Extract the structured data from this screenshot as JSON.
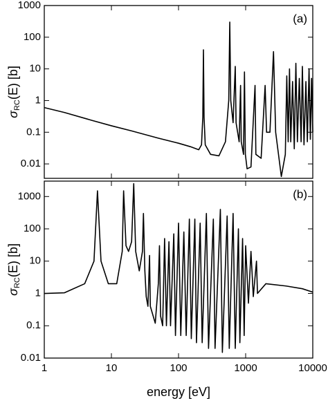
{
  "chart_data": [
    {
      "type": "line",
      "panel_label": "(a)",
      "ylabel": "σ",
      "ylabel_sub": "RC",
      "ylabel_rest": "(E) [b]",
      "xlog": true,
      "ylog": true,
      "xlim": [
        1,
        10000
      ],
      "ylim": [
        0.0035,
        1000
      ],
      "yticks": [
        0.01,
        0.1,
        1,
        10,
        100,
        1000
      ],
      "series": [
        {
          "color": "#000000",
          "x": [
            1,
            2,
            5,
            10,
            20,
            50,
            100,
            150,
            200,
            220,
            230,
            235,
            240,
            250,
            300,
            400,
            500,
            560,
            580,
            600,
            650,
            700,
            720,
            800,
            840,
            860,
            930,
            960,
            990,
            1050,
            1200,
            1380,
            1420,
            1700,
            1950,
            2050,
            2300,
            2600,
            2800,
            3400,
            3900,
            4100,
            4300,
            4500,
            4700,
            5000,
            5300,
            5600,
            5900,
            6300,
            6700,
            7000,
            7400,
            7900,
            8300,
            8800,
            9200,
            9600,
            10000
          ],
          "values": [
            0.6,
            0.42,
            0.24,
            0.16,
            0.11,
            0.065,
            0.045,
            0.035,
            0.028,
            0.04,
            0.3,
            40,
            0.3,
            0.04,
            0.02,
            0.018,
            0.05,
            1,
            300,
            1,
            0.2,
            12,
            0.2,
            0.05,
            3,
            0.05,
            0.02,
            8,
            0.02,
            0.007,
            0.008,
            3,
            0.02,
            0.015,
            3,
            0.1,
            0.1,
            35,
            0.1,
            0.004,
            0.02,
            6,
            0.05,
            10,
            0.05,
            4,
            0.03,
            15,
            0.05,
            5,
            0.05,
            12,
            0.04,
            4,
            0.05,
            10,
            0.06,
            5,
            0.1
          ]
        }
      ]
    },
    {
      "type": "line",
      "panel_label": "(b)",
      "ylabel": "σ",
      "ylabel_sub": "RC",
      "ylabel_rest": "(E) [b]",
      "xlabel": "energy [eV]",
      "xlog": true,
      "ylog": true,
      "xlim": [
        1,
        10000
      ],
      "ylim": [
        0.01,
        3000
      ],
      "xticks": [
        1,
        10,
        100,
        1000,
        10000
      ],
      "yticks": [
        0.01,
        0.1,
        1,
        10,
        100,
        1000
      ],
      "series": [
        {
          "color": "#000000",
          "x": [
            1,
            2,
            4,
            5.5,
            6.2,
            7,
            9,
            12,
            14.5,
            15.2,
            16.5,
            18,
            20,
            21.5,
            23,
            26,
            29,
            30,
            31.5,
            33,
            35,
            37,
            38,
            45,
            50,
            52,
            54,
            58,
            62,
            66,
            72,
            76,
            85,
            90,
            100,
            108,
            120,
            130,
            145,
            155,
            175,
            185,
            210,
            225,
            260,
            280,
            330,
            350,
            420,
            450,
            530,
            570,
            650,
            700,
            780,
            820,
            900,
            950,
            1000,
            1100,
            1200,
            1300,
            1450,
            1500,
            2000,
            4000,
            7000,
            10000
          ],
          "values": [
            1,
            1.05,
            2,
            10,
            1500,
            10,
            2,
            2,
            20,
            1500,
            30,
            20,
            40,
            2500,
            20,
            5,
            20,
            300,
            5,
            0.8,
            0.4,
            15,
            0.4,
            0.12,
            2,
            30,
            0.2,
            0.1,
            50,
            0.1,
            40,
            0.1,
            70,
            0.05,
            150,
            0.05,
            80,
            0.05,
            200,
            0.04,
            200,
            0.03,
            150,
            0.03,
            300,
            0.02,
            200,
            0.02,
            400,
            0.015,
            250,
            0.02,
            300,
            0.02,
            100,
            0.03,
            50,
            0.05,
            30,
            0.5,
            20,
            0.8,
            10,
            1,
            2,
            1.7,
            1.4,
            1.1
          ]
        }
      ]
    }
  ]
}
